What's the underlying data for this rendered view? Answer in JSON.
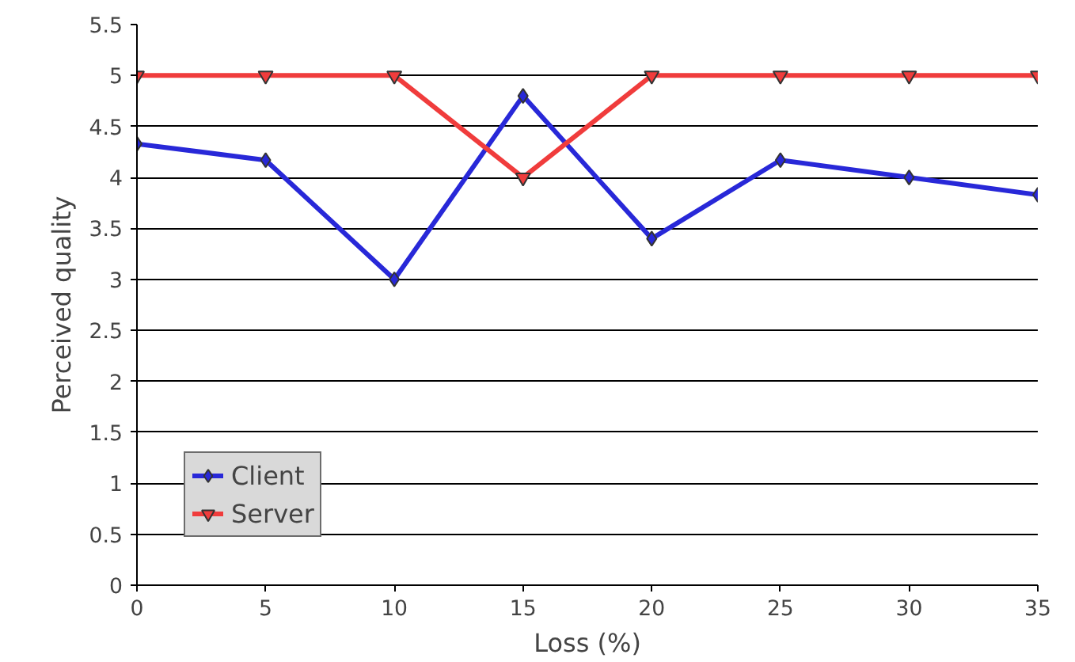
{
  "chart_data": {
    "type": "line",
    "xlabel": "Loss (%)",
    "ylabel": "Perceived quality",
    "x": [
      0,
      5,
      10,
      15,
      20,
      25,
      30,
      35
    ],
    "xlim": [
      0,
      35
    ],
    "xticks": [
      0,
      5,
      10,
      15,
      20,
      25,
      30,
      35
    ],
    "ylim": [
      0,
      5.5
    ],
    "yticks": [
      0,
      {
        "value": 0.5,
        "label": "0.5"
      },
      1,
      {
        "value": 1.5,
        "label": "1.5"
      },
      2,
      {
        "value": 2.5,
        "label": "2.5"
      },
      3,
      {
        "value": 3.5,
        "label": "3.5"
      },
      4,
      {
        "value": 4.5,
        "label": "4.5"
      },
      5,
      {
        "value": 5.5,
        "label": "5.5"
      }
    ],
    "grid": "y",
    "legend": "bottom left",
    "line_style": "solid",
    "series": [
      {
        "name": "Client",
        "color": "#2828d8",
        "marker": "diamond",
        "values": [
          4.33,
          4.17,
          3,
          4.8,
          3.4,
          4.17,
          4,
          3.83
        ]
      },
      {
        "name": "Server",
        "color": "#f03c3c",
        "marker": "triangle",
        "values": [
          5,
          5,
          5,
          4,
          5,
          5,
          5,
          5
        ]
      }
    ]
  }
}
